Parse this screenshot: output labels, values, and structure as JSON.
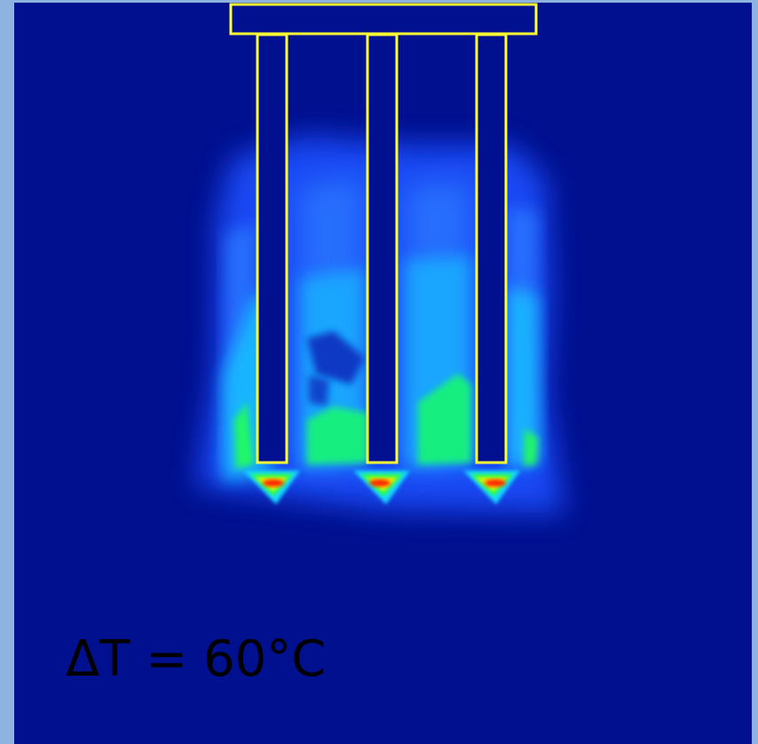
{
  "annotation": {
    "label": "ΔT = 60°C"
  },
  "colors": {
    "frame": "#8fb3e0",
    "background": "#00108f",
    "outline": "#ffff33",
    "label_text": "#000000"
  },
  "colormap": [
    "#00108f",
    "#1a4cff",
    "#19c6ff",
    "#19ff66",
    "#ffff00",
    "#ff2a00"
  ]
}
